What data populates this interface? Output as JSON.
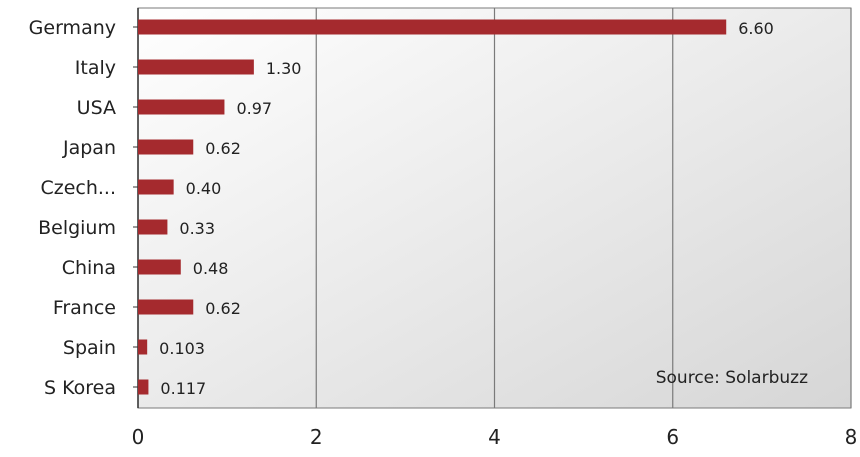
{
  "chart_data": {
    "type": "bar",
    "orientation": "horizontal",
    "categories": [
      "Germany",
      "Italy",
      "USA",
      "Japan",
      "Czech...",
      "Belgium",
      "China",
      "France",
      "Spain",
      "S Korea"
    ],
    "values": [
      6.6,
      1.3,
      0.97,
      0.62,
      0.4,
      0.33,
      0.48,
      0.62,
      0.103,
      0.117
    ],
    "value_labels": [
      "6.60",
      "1.30",
      "0.97",
      "0.62",
      "0.40",
      "0.33",
      "0.48",
      "0.62",
      "0.103",
      "0.117"
    ],
    "xlim": [
      0,
      8
    ],
    "x_ticks": [
      0,
      2,
      4,
      6,
      8
    ],
    "x_tick_labels": [
      "0",
      "2",
      "4",
      "6",
      "8"
    ],
    "grid": true,
    "annotation": "Source: Solarbuzz",
    "colors": {
      "bar": "#a52a2e",
      "gridline": "#7a7a7a",
      "plot_bg_start": "#ffffff",
      "plot_bg_end": "#d6d6d6"
    }
  }
}
